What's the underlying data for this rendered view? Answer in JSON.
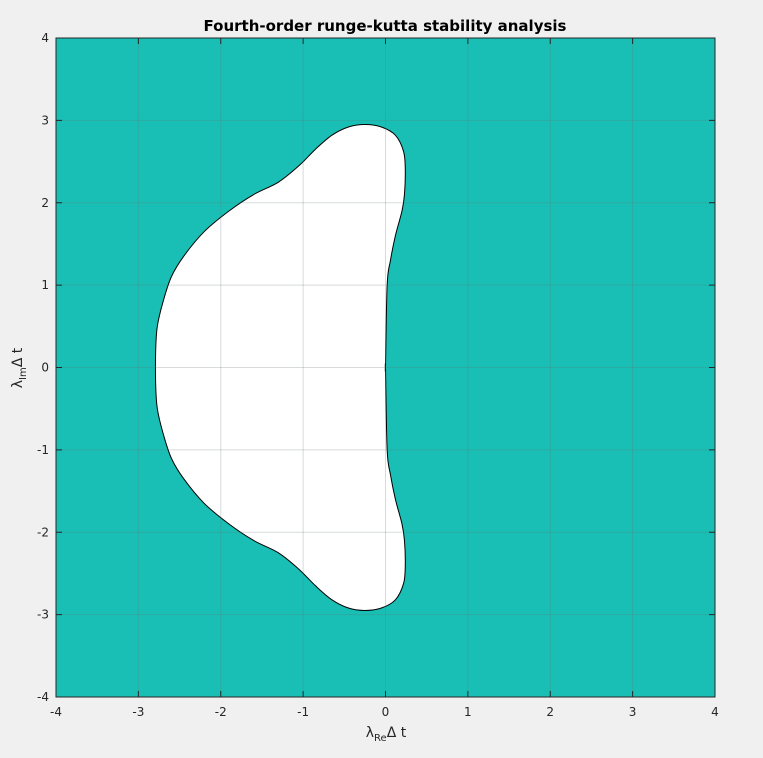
{
  "chart_data": {
    "type": "area",
    "title": "Fourth-order runge-kutta stability analysis",
    "xlabel": {
      "symbol": "λ",
      "subscript": "Re",
      "suffix": "Δ t"
    },
    "ylabel": {
      "symbol": "λ",
      "subscript": "Im",
      "suffix": "Δ t"
    },
    "xlim": [
      -4,
      4
    ],
    "ylim": [
      -4,
      4
    ],
    "xticks": [
      -4,
      -3,
      -2,
      -1,
      0,
      1,
      2,
      3,
      4
    ],
    "yticks": [
      -4,
      -3,
      -2,
      -1,
      0,
      1,
      2,
      3,
      4
    ],
    "xtick_labels": [
      "-4",
      "-3",
      "-2",
      "-1",
      "0",
      "1",
      "2",
      "3",
      "4"
    ],
    "ytick_labels": [
      "-4",
      "-3",
      "-2",
      "-1",
      "0",
      "1",
      "2",
      "3",
      "4"
    ],
    "grid": true,
    "colors": {
      "unstable_fill": "#19bfb5",
      "stable_fill": "#ffffff",
      "boundary": "#000000",
      "grid": "#5f6e6e",
      "figure_bg": "#f0f0f0"
    },
    "stability_boundary": {
      "x": [
        0.0,
        0.02,
        0.06,
        0.12,
        0.2,
        0.23,
        0.24,
        0.22,
        0.12,
        -0.05,
        -0.25,
        -0.45,
        -0.65,
        -0.85,
        -1.05,
        -1.3,
        -1.6,
        -1.9,
        -2.2,
        -2.45,
        -2.6,
        -2.7,
        -2.77,
        -2.79,
        -2.79,
        -2.77,
        -2.7,
        -2.6,
        -2.45,
        -2.2,
        -1.9,
        -1.6,
        -1.3,
        -1.05,
        -0.85,
        -0.65,
        -0.45,
        -0.25,
        -0.05,
        0.12,
        0.22,
        0.24,
        0.23,
        0.2,
        0.12,
        0.06,
        0.02,
        0.0,
        0.0
      ],
      "y": [
        0.0,
        1.0,
        1.3,
        1.6,
        1.9,
        2.1,
        2.4,
        2.62,
        2.82,
        2.92,
        2.95,
        2.92,
        2.82,
        2.65,
        2.45,
        2.25,
        2.1,
        1.9,
        1.65,
        1.35,
        1.1,
        0.8,
        0.5,
        0.2,
        -0.2,
        -0.5,
        -0.8,
        -1.1,
        -1.35,
        -1.65,
        -1.9,
        -2.1,
        -2.25,
        -2.45,
        -2.65,
        -2.82,
        -2.92,
        -2.95,
        -2.92,
        -2.82,
        -2.62,
        -2.4,
        -2.1,
        -1.9,
        -1.6,
        -1.3,
        -1.0,
        0.0,
        0.0
      ]
    }
  }
}
